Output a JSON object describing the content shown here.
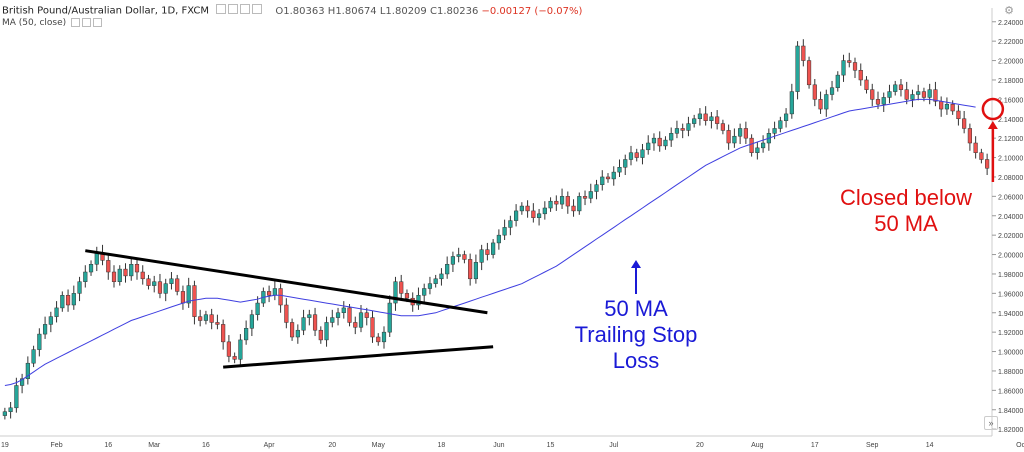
{
  "header": {
    "symbol": "British Pound/Australian Dollar, 1D, FXCM",
    "open": "O1.80363",
    "high": "H1.80674",
    "low": "L1.80209",
    "close": "C1.80236",
    "change": "−0.00127 (−0.07%)"
  },
  "ma_label": "MA (50, close)",
  "annotations": {
    "blue": [
      "50 MA",
      "Trailing Stop",
      "Loss"
    ],
    "red": [
      "Closed below",
      "50 MA"
    ]
  },
  "colors": {
    "up": "#26a69a",
    "down": "#ef5350",
    "ma": "#3f3fe0",
    "annotation_blue": "#1a1ad6",
    "annotation_red": "#e01010"
  },
  "chart_data": {
    "type": "candlestick",
    "title": "British Pound/Australian Dollar, 1D, FXCM",
    "y_ticks": [
      "2.24000",
      "2.22000",
      "2.20000",
      "2.18000",
      "2.16000",
      "2.14000",
      "2.12000",
      "2.10000",
      "2.08000",
      "2.06000",
      "2.04000",
      "2.02000",
      "2.00000",
      "1.98000",
      "1.96000",
      "1.94000",
      "1.92000",
      "1.90000",
      "1.88000",
      "1.86000",
      "1.84000",
      "1.82000"
    ],
    "ylim": [
      1.815,
      2.248
    ],
    "x_ticks": [
      {
        "label": "19",
        "i": 0
      },
      {
        "label": "Feb",
        "i": 9
      },
      {
        "label": "16",
        "i": 18
      },
      {
        "label": "Mar",
        "i": 26
      },
      {
        "label": "16",
        "i": 35
      },
      {
        "label": "Apr",
        "i": 46
      },
      {
        "label": "20",
        "i": 57
      },
      {
        "label": "May",
        "i": 65
      },
      {
        "label": "18",
        "i": 76
      },
      {
        "label": "Jun",
        "i": 86
      },
      {
        "label": "15",
        "i": 95
      },
      {
        "label": "Jul",
        "i": 106
      },
      {
        "label": "20",
        "i": 121
      },
      {
        "label": "Aug",
        "i": 131
      },
      {
        "label": "17",
        "i": 141
      },
      {
        "label": "Sep",
        "i": 151
      },
      {
        "label": "14",
        "i": 161
      },
      {
        "label": "Oct",
        "i": 177
      }
    ],
    "candles_close": [
      1.838,
      1.842,
      1.865,
      1.872,
      1.888,
      1.902,
      1.918,
      1.928,
      1.936,
      1.945,
      1.958,
      1.948,
      1.96,
      1.972,
      1.982,
      1.99,
      2.002,
      1.994,
      1.982,
      1.972,
      1.985,
      1.978,
      1.99,
      1.982,
      1.975,
      1.968,
      1.972,
      1.96,
      1.97,
      1.975,
      1.962,
      1.95,
      1.968,
      1.936,
      1.932,
      1.938,
      1.93,
      1.928,
      1.91,
      1.895,
      1.892,
      1.912,
      1.924,
      1.938,
      1.95,
      1.962,
      1.958,
      1.965,
      1.948,
      1.93,
      1.915,
      1.922,
      1.935,
      1.938,
      1.922,
      1.912,
      1.93,
      1.935,
      1.94,
      1.945,
      1.93,
      1.925,
      1.94,
      1.935,
      1.915,
      1.91,
      1.92,
      1.95,
      1.972,
      1.96,
      1.955,
      1.948,
      1.958,
      1.965,
      1.97,
      1.975,
      1.98,
      1.99,
      1.998,
      2.0,
      1.995,
      1.975,
      1.992,
      2.005,
      2.0,
      2.012,
      2.02,
      2.028,
      2.035,
      2.045,
      2.05,
      2.045,
      2.038,
      2.042,
      2.048,
      2.055,
      2.052,
      2.06,
      2.05,
      2.045,
      2.06,
      2.058,
      2.065,
      2.072,
      2.08,
      2.078,
      2.085,
      2.09,
      2.098,
      2.105,
      2.1,
      2.108,
      2.115,
      2.12,
      2.112,
      2.118,
      2.125,
      2.13,
      2.128,
      2.135,
      2.14,
      2.145,
      2.138,
      2.142,
      2.135,
      2.128,
      2.115,
      2.122,
      2.13,
      2.12,
      2.105,
      2.11,
      2.115,
      2.125,
      2.13,
      2.138,
      2.145,
      2.168,
      2.215,
      2.2,
      2.175,
      2.16,
      2.15,
      2.165,
      2.172,
      2.185,
      2.2,
      2.198,
      2.19,
      2.18,
      2.17,
      2.16,
      2.155,
      2.162,
      2.168,
      2.175,
      2.17,
      2.16,
      2.165,
      2.168,
      2.162,
      2.17,
      2.158,
      2.15,
      2.155,
      2.148,
      2.14,
      2.13,
      2.115,
      2.105,
      2.098,
      2.089
    ],
    "series": [
      {
        "name": "MA (50, close)",
        "values": [
          1.865,
          1.866,
          1.868,
          1.871,
          1.875,
          1.879,
          1.883,
          1.887,
          1.89,
          1.893,
          1.896,
          1.899,
          1.902,
          1.905,
          1.908,
          1.911,
          1.914,
          1.917,
          1.92,
          1.923,
          1.926,
          1.929,
          1.932,
          1.934,
          1.936,
          1.938,
          1.94,
          1.942,
          1.944,
          1.946,
          1.948,
          1.95,
          1.952,
          1.953,
          1.954,
          1.955,
          1.955,
          1.955,
          1.954,
          1.953,
          1.952,
          1.951,
          1.952,
          1.953,
          1.954,
          1.956,
          1.957,
          1.958,
          1.958,
          1.957,
          1.956,
          1.955,
          1.954,
          1.953,
          1.952,
          1.951,
          1.95,
          1.949,
          1.948,
          1.947,
          1.946,
          1.945,
          1.944,
          1.943,
          1.942,
          1.941,
          1.94,
          1.939,
          1.938,
          1.937,
          1.937,
          1.937,
          1.937,
          1.938,
          1.939,
          1.94,
          1.942,
          1.944,
          1.946,
          1.948,
          1.95,
          1.952,
          1.954,
          1.956,
          1.958,
          1.96,
          1.962,
          1.964,
          1.966,
          1.968,
          1.97,
          1.973,
          1.976,
          1.979,
          1.982,
          1.985,
          1.988,
          1.992,
          1.996,
          2.0,
          2.004,
          2.008,
          2.012,
          2.016,
          2.02,
          2.024,
          2.028,
          2.032,
          2.036,
          2.04,
          2.044,
          2.048,
          2.052,
          2.056,
          2.06,
          2.064,
          2.068,
          2.072,
          2.076,
          2.08,
          2.084,
          2.088,
          2.092,
          2.095,
          2.098,
          2.101,
          2.104,
          2.107,
          2.11,
          2.112,
          2.114,
          2.116,
          2.118,
          2.12,
          2.122,
          2.124,
          2.126,
          2.128,
          2.13,
          2.132,
          2.134,
          2.136,
          2.138,
          2.14,
          2.142,
          2.144,
          2.146,
          2.148,
          2.149,
          2.15,
          2.151,
          2.152,
          2.153,
          2.154,
          2.155,
          2.156,
          2.157,
          2.158,
          2.159,
          2.16,
          2.16,
          2.16,
          2.159,
          2.158,
          2.157,
          2.156,
          2.155,
          2.154,
          2.153,
          2.152
        ]
      }
    ],
    "trendlines": [
      {
        "from": [
          14,
          2.004
        ],
        "to": [
          84,
          1.94
        ],
        "label": "upper"
      },
      {
        "from": [
          38,
          1.884
        ],
        "to": [
          85,
          1.905
        ],
        "label": "lower"
      }
    ],
    "circle_marker": {
      "i": 172,
      "y": 2.15
    },
    "grid": false
  }
}
